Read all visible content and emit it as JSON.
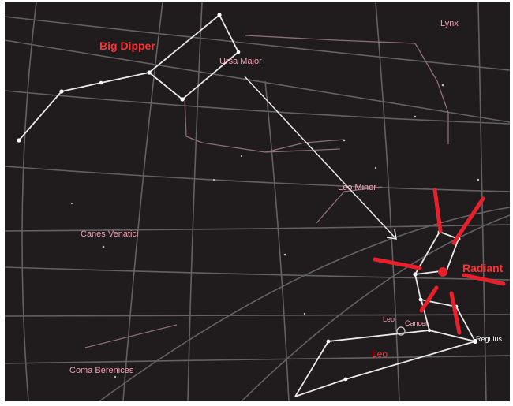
{
  "map": {
    "colors": {
      "background": "#201c1d",
      "grid": "#6e6e6e",
      "constellation_line": "#e8e8e8",
      "faint_line": "#8c6f78",
      "label": "#f0a0b4",
      "highlight_label": "#ff3030",
      "radiant": "#e8202c",
      "star_label": "#ffffff"
    },
    "labels": {
      "big_dipper": "Big Dipper",
      "ursa_major": "Ursa Major",
      "lynx": "Lynx",
      "leo_minor": "Leo Minor",
      "canes_venatici": "Canes Venatici",
      "radiant": "Radiant",
      "leo": "Leo",
      "coma_berenices": "Coma Berenices",
      "leo_cancer": [
        "Leo",
        "Cancer"
      ],
      "regulus": "Regulus"
    }
  }
}
